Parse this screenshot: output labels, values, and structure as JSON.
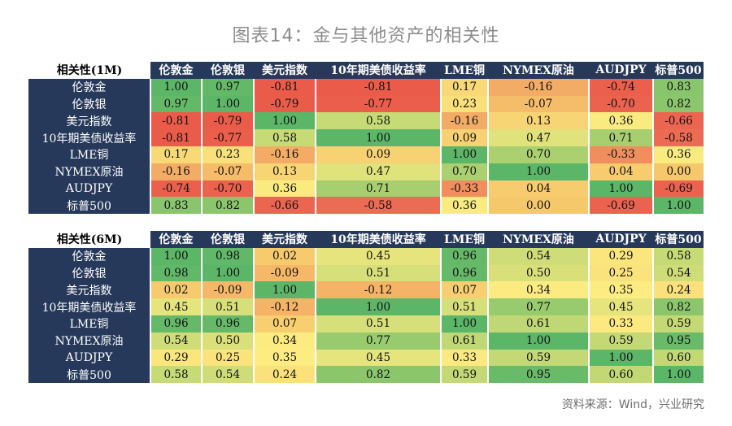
{
  "title": "图表14：金与其他资产的相关性",
  "source": "资料来源：Wind，兴业研究",
  "chart_data": [
    {
      "type": "heatmap",
      "title": "相关性(1M)",
      "columns": [
        "伦敦金",
        "伦敦银",
        "美元指数",
        "10年期美债收益率",
        "LME铜",
        "NYMEX原油",
        "AUDJPY",
        "标普500"
      ],
      "rows": [
        "伦敦金",
        "伦敦银",
        "美元指数",
        "10年期美债收益率",
        "LME铜",
        "NYMEX原油",
        "AUDJPY",
        "标普500"
      ],
      "values": [
        [
          "1.00",
          "0.97",
          "-0.81",
          "-0.81",
          "0.17",
          "-0.16",
          "-0.74",
          "0.83"
        ],
        [
          "0.97",
          "1.00",
          "-0.79",
          "-0.77",
          "0.23",
          "-0.07",
          "-0.70",
          "0.82"
        ],
        [
          "-0.81",
          "-0.79",
          "1.00",
          "0.58",
          "-0.16",
          "0.13",
          "0.36",
          "-0.66"
        ],
        [
          "-0.81",
          "-0.77",
          "0.58",
          "1.00",
          "0.09",
          "0.47",
          "0.71",
          "-0.58"
        ],
        [
          "0.17",
          "0.23",
          "-0.16",
          "0.09",
          "1.00",
          "0.70",
          "-0.33",
          "0.36"
        ],
        [
          "-0.16",
          "-0.07",
          "0.13",
          "0.47",
          "0.70",
          "1.00",
          "0.04",
          "0.00"
        ],
        [
          "-0.74",
          "-0.70",
          "0.36",
          "0.71",
          "-0.33",
          "0.04",
          "1.00",
          "-0.69"
        ],
        [
          "0.83",
          "0.82",
          "-0.66",
          "-0.58",
          "0.36",
          "0.00",
          "-0.69",
          "1.00"
        ]
      ]
    },
    {
      "type": "heatmap",
      "title": "相关性(6M)",
      "columns": [
        "伦敦金",
        "伦敦银",
        "美元指数",
        "10年期美债收益率",
        "LME铜",
        "NYMEX原油",
        "AUDJPY",
        "标普500"
      ],
      "rows": [
        "伦敦金",
        "伦敦银",
        "美元指数",
        "10年期美债收益率",
        "LME铜",
        "NYMEX原油",
        "AUDJPY",
        "标普500"
      ],
      "values": [
        [
          "1.00",
          "0.98",
          "0.02",
          "0.45",
          "0.96",
          "0.54",
          "0.29",
          "0.58"
        ],
        [
          "0.98",
          "1.00",
          "-0.09",
          "0.51",
          "0.96",
          "0.50",
          "0.25",
          "0.54"
        ],
        [
          "0.02",
          "-0.09",
          "1.00",
          "-0.12",
          "0.07",
          "0.34",
          "0.35",
          "0.24"
        ],
        [
          "0.45",
          "0.51",
          "-0.12",
          "1.00",
          "0.51",
          "0.77",
          "0.45",
          "0.82"
        ],
        [
          "0.96",
          "0.96",
          "0.07",
          "0.51",
          "1.00",
          "0.61",
          "0.33",
          "0.59"
        ],
        [
          "0.54",
          "0.50",
          "0.34",
          "0.77",
          "0.61",
          "1.00",
          "0.59",
          "0.95"
        ],
        [
          "0.29",
          "0.25",
          "0.35",
          "0.45",
          "0.33",
          "0.59",
          "1.00",
          "0.60"
        ],
        [
          "0.58",
          "0.54",
          "0.24",
          "0.82",
          "0.59",
          "0.95",
          "0.60",
          "1.00"
        ]
      ]
    }
  ]
}
